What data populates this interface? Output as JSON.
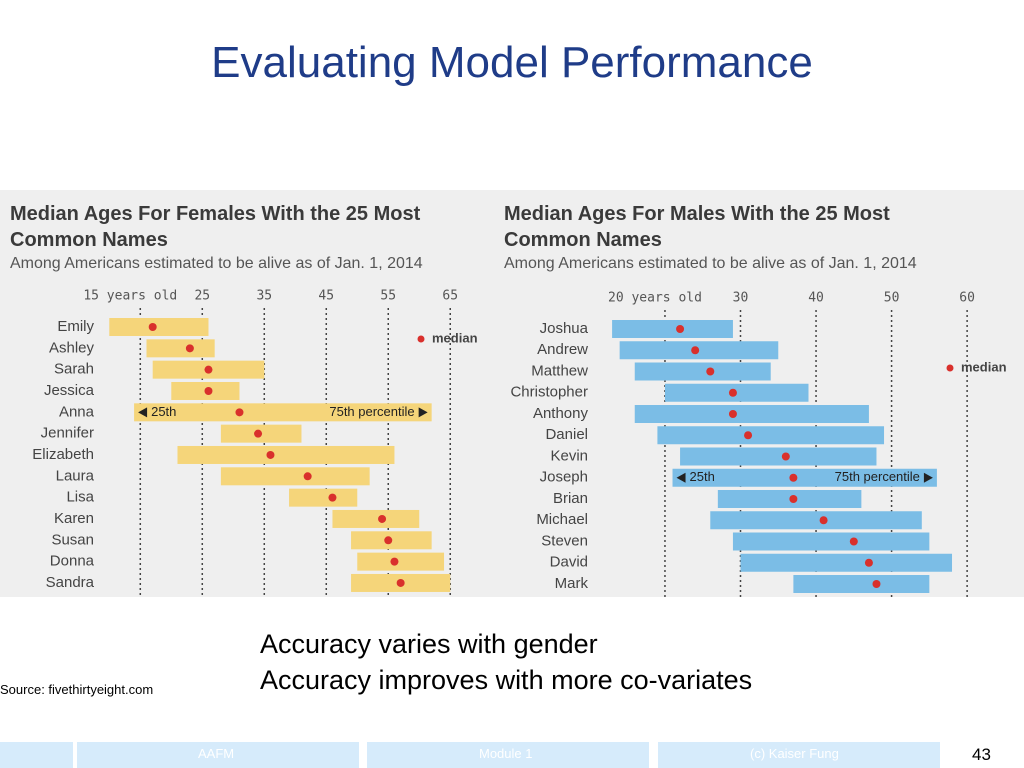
{
  "slide": {
    "title": "Evaluating Model Performance",
    "bullets": [
      "Accuracy varies with gender",
      "Accuracy improves with more co-variates"
    ],
    "source": "Source: fivethirtyeight.com",
    "footer": [
      "AAFM",
      "Module 1",
      "(c) Kaiser Fung"
    ],
    "page_number": "43"
  },
  "chart_data": [
    {
      "type": "range",
      "title": "Median Ages For Females With the 25 Most Common Names",
      "subtitle": "Among Americans estimated to be alive as of Jan. 1, 2014",
      "categories": [
        "Emily",
        "Ashley",
        "Sarah",
        "Jessica",
        "Anna",
        "Jennifer",
        "Elizabeth",
        "Laura",
        "Lisa",
        "Karen",
        "Susan",
        "Donna",
        "Sandra"
      ],
      "series": [
        {
          "name": "25th",
          "color": "#f5d57a",
          "values": [
            10,
            16,
            17,
            20,
            14,
            28,
            21,
            28,
            39,
            46,
            49,
            50,
            49
          ]
        },
        {
          "name": "median",
          "color": "#d9302c",
          "values": [
            17,
            23,
            26,
            26,
            31,
            34,
            36,
            42,
            46,
            54,
            55,
            56,
            57
          ]
        },
        {
          "name": "75th percentile",
          "color": "#f5d57a",
          "values": [
            26,
            27,
            35,
            31,
            62,
            41,
            56,
            52,
            50,
            60,
            62,
            64,
            65
          ]
        }
      ],
      "xlim": [
        8.5,
        69.8
      ],
      "xticks": [
        {
          "value": 15,
          "label": "15 years old"
        },
        25,
        35,
        45,
        55,
        65
      ],
      "grid": true
    },
    {
      "type": "range",
      "title": "Median Ages For Males With the 25 Most Common Names",
      "subtitle": "Among Americans estimated to be alive as of Jan. 1, 2014",
      "categories": [
        "Joshua",
        "Andrew",
        "Matthew",
        "Christopher",
        "Anthony",
        "Daniel",
        "Kevin",
        "Joseph",
        "Brian",
        "Michael",
        "Steven",
        "David",
        "Mark"
      ],
      "series": [
        {
          "name": "25th",
          "color": "#7bbde6",
          "values": [
            13,
            14,
            16,
            20,
            16,
            19,
            22,
            21,
            27,
            26,
            29,
            30,
            37
          ]
        },
        {
          "name": "median",
          "color": "#d9302c",
          "values": [
            22,
            24,
            26,
            29,
            29,
            31,
            36,
            37,
            37,
            41,
            45,
            47,
            48
          ]
        },
        {
          "name": "75th percentile",
          "color": "#7bbde6",
          "values": [
            29,
            35,
            34,
            39,
            47,
            49,
            48,
            56,
            46,
            54,
            55,
            58,
            55
          ]
        }
      ],
      "xlim": [
        11.4,
        67
      ],
      "xticks": [
        {
          "value": 20,
          "label": "20 years old"
        },
        30,
        40,
        50,
        60
      ],
      "grid": true
    }
  ]
}
